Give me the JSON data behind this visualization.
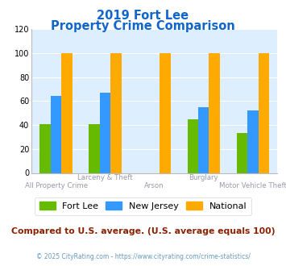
{
  "title_line1": "2019 Fort Lee",
  "title_line2": "Property Crime Comparison",
  "categories": [
    "All Property Crime",
    "Larceny & Theft",
    "Arson",
    "Burglary",
    "Motor Vehicle Theft"
  ],
  "series": {
    "Fort Lee": [
      41,
      41,
      null,
      45,
      33
    ],
    "New Jersey": [
      64,
      67,
      null,
      55,
      52
    ],
    "National": [
      100,
      100,
      100,
      100,
      100
    ]
  },
  "colors": {
    "Fort Lee": "#66bb00",
    "New Jersey": "#3399ff",
    "National": "#ffaa00"
  },
  "ylim": [
    0,
    120
  ],
  "yticks": [
    0,
    20,
    40,
    60,
    80,
    100,
    120
  ],
  "plot_bg": "#ddeeff",
  "title_color": "#1166cc",
  "footnote1": "Compared to U.S. average. (U.S. average equals 100)",
  "footnote2": "© 2025 CityRating.com - https://www.cityrating.com/crime-statistics/",
  "footnote1_color": "#882200",
  "footnote2_color": "#6699bb",
  "bar_width": 0.22,
  "group_positions": [
    0,
    1,
    2,
    3,
    4
  ]
}
